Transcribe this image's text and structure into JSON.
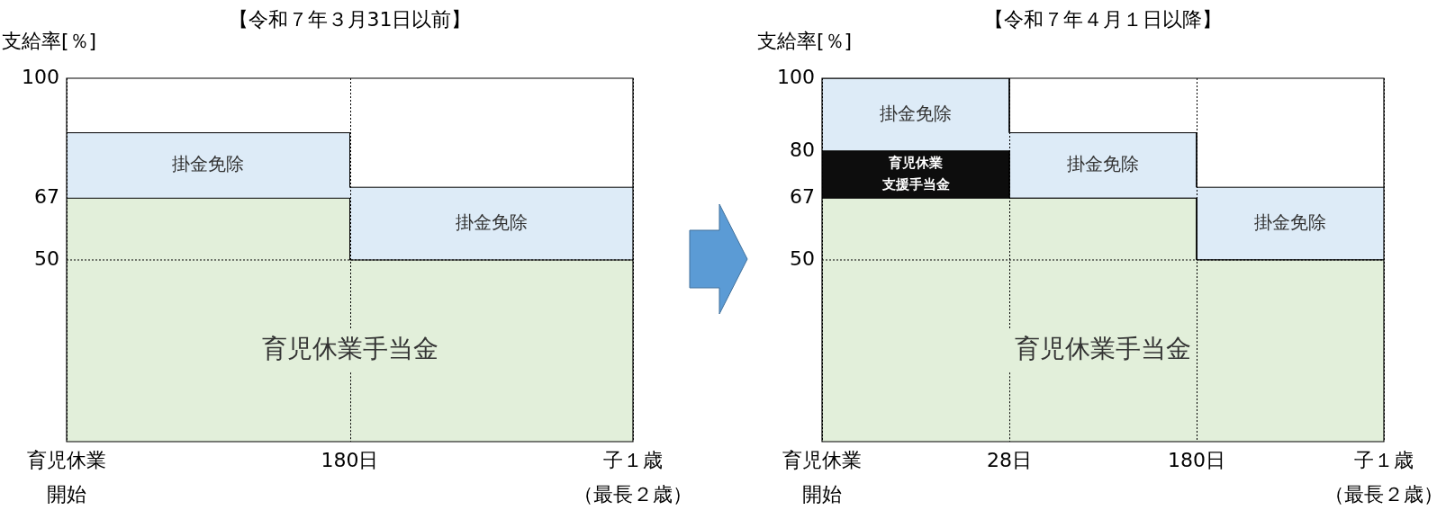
{
  "chart_data": [
    {
      "type": "area",
      "title": "【令和７年３月31日以前】",
      "ylabel": "支給率[％]",
      "categories": [
        "育児休業開始",
        "180日",
        "子１歳（最長２歳）"
      ],
      "series": [
        {
          "name": "育児休業手当金",
          "color": "#e2efda",
          "x": [
            "育児休業開始",
            "180日",
            "180日",
            "子１歳（最長２歳）"
          ],
          "values": [
            67,
            67,
            50,
            50
          ]
        },
        {
          "name": "掛金免除",
          "color": "#ddebf7",
          "x": [
            "育児休業開始",
            "180日",
            "180日",
            "子１歳（最長２歳）"
          ],
          "values": [
            85,
            85,
            70,
            70
          ]
        }
      ],
      "ylim": [
        0,
        100
      ],
      "yticks": [
        50,
        67,
        100
      ],
      "grid": "x",
      "ref_lines": [
        {
          "axis": "y",
          "value": 50,
          "line_style": "dotted"
        }
      ]
    },
    {
      "type": "area",
      "title": "【令和７年４月１日以降】",
      "ylabel": "支給率[％]",
      "categories": [
        "育児休業開始",
        "28日",
        "180日",
        "子１歳（最長２歳）"
      ],
      "series": [
        {
          "name": "育児休業手当金",
          "color": "#e2efda",
          "x": [
            "育児休業開始",
            "180日",
            "180日",
            "子１歳（最長２歳）"
          ],
          "values": [
            67,
            67,
            50,
            50
          ]
        },
        {
          "name": "育児休業支援手当金",
          "color": "#0d0d0d",
          "x": [
            "育児休業開始",
            "28日",
            "28日",
            "180日",
            "180日",
            "子１歳（最長２歳）"
          ],
          "values": [
            80,
            80,
            67,
            67,
            50,
            50
          ]
        },
        {
          "name": "掛金免除",
          "color": "#ddebf7",
          "x": [
            "育児休業開始",
            "28日",
            "28日",
            "180日",
            "180日",
            "子１歳（最長２歳）"
          ],
          "values": [
            100,
            100,
            85,
            85,
            70,
            70
          ]
        }
      ],
      "ylim": [
        0,
        100
      ],
      "yticks": [
        50,
        67,
        80,
        100
      ],
      "grid": "x",
      "ref_lines": [
        {
          "axis": "y",
          "value": 50,
          "line_style": "dotted"
        }
      ]
    }
  ]
}
